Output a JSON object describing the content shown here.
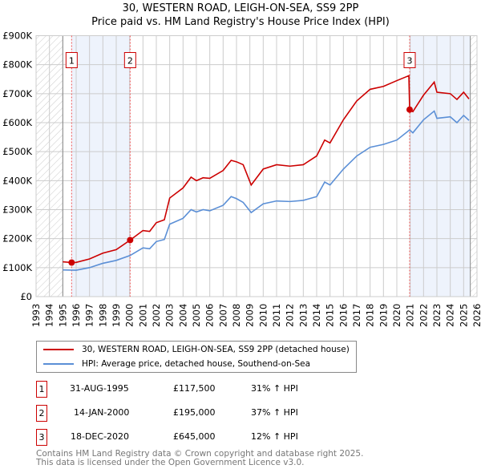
{
  "chart_data": {
    "type": "line",
    "title": "30, WESTERN ROAD, LEIGH-ON-SEA, SS9 2PP",
    "subtitle": "Price paid vs. HM Land Registry's House Price Index (HPI)",
    "xlim": [
      1993,
      2026
    ],
    "ylim": [
      0,
      900000
    ],
    "x_ticks": [
      "1993",
      "1994",
      "1995",
      "1996",
      "1997",
      "1998",
      "1999",
      "2000",
      "2001",
      "2002",
      "2003",
      "2004",
      "2005",
      "2006",
      "2007",
      "2008",
      "2009",
      "2010",
      "2011",
      "2012",
      "2013",
      "2014",
      "2015",
      "2016",
      "2017",
      "2018",
      "2019",
      "2020",
      "2021",
      "2022",
      "2023",
      "2024",
      "2025",
      "2026"
    ],
    "y_ticks": [
      {
        "v": 0,
        "label": "£0"
      },
      {
        "v": 100000,
        "label": "£100K"
      },
      {
        "v": 200000,
        "label": "£200K"
      },
      {
        "v": 300000,
        "label": "£300K"
      },
      {
        "v": 400000,
        "label": "£400K"
      },
      {
        "v": 500000,
        "label": "£500K"
      },
      {
        "v": 600000,
        "label": "£600K"
      },
      {
        "v": 700000,
        "label": "£700K"
      },
      {
        "v": 800000,
        "label": "£800K"
      },
      {
        "v": 900000,
        "label": "£900K"
      }
    ],
    "grid": true,
    "series": [
      {
        "name": "30, WESTERN ROAD, LEIGH-ON-SEA, SS9 2PP (detached house)",
        "color": "#cc0000",
        "x": [
          1995.0,
          1995.66,
          1996,
          1997,
          1998,
          1999,
          2000.04,
          2001,
          2001.5,
          2002,
          2002.6,
          2003,
          2004,
          2004.6,
          2005,
          2005.5,
          2006,
          2007,
          2007.6,
          2008,
          2008.5,
          2009.1,
          2010,
          2011,
          2012,
          2013,
          2014,
          2014.6,
          2015,
          2016,
          2017,
          2018,
          2019,
          2020,
          2020.9,
          2020.96,
          2021.2,
          2022,
          2022.8,
          2023,
          2024,
          2024.5,
          2025,
          2025.4
        ],
        "y": [
          120000,
          117500,
          118000,
          130000,
          150000,
          162000,
          195000,
          228000,
          225000,
          255000,
          265000,
          340000,
          375000,
          412000,
          400000,
          410000,
          408000,
          435000,
          470000,
          465000,
          455000,
          385000,
          440000,
          455000,
          450000,
          455000,
          485000,
          540000,
          530000,
          610000,
          675000,
          715000,
          725000,
          745000,
          762000,
          645000,
          638000,
          695000,
          740000,
          705000,
          700000,
          680000,
          705000,
          682000
        ]
      },
      {
        "name": "HPI: Average price, detached house, Southend-on-Sea",
        "color": "#5b8fd6",
        "x": [
          1995.0,
          1996,
          1997,
          1998,
          1999,
          2000.04,
          2001,
          2001.5,
          2002,
          2002.6,
          2003,
          2004,
          2004.6,
          2005,
          2005.5,
          2006,
          2007,
          2007.6,
          2008,
          2008.5,
          2009.1,
          2010,
          2011,
          2012,
          2013,
          2014,
          2014.6,
          2015,
          2016,
          2017,
          2018,
          2019,
          2020,
          2020.96,
          2021.2,
          2022,
          2022.8,
          2023,
          2024,
          2024.5,
          2025,
          2025.4
        ],
        "y": [
          92000,
          91000,
          100000,
          115000,
          125000,
          142000,
          168000,
          165000,
          190000,
          197000,
          250000,
          270000,
          300000,
          292000,
          300000,
          296000,
          315000,
          345000,
          338000,
          325000,
          290000,
          320000,
          330000,
          328000,
          332000,
          345000,
          395000,
          385000,
          440000,
          485000,
          515000,
          525000,
          540000,
          575000,
          565000,
          610000,
          640000,
          615000,
          620000,
          600000,
          625000,
          608000
        ]
      }
    ],
    "sales": [
      {
        "id": "1",
        "x": 1995.66,
        "y": 117500,
        "date": "31-AUG-1995",
        "price": "£117,500",
        "hpi": "31% ↑ HPI"
      },
      {
        "id": "2",
        "x": 2000.04,
        "y": 195000,
        "date": "14-JAN-2000",
        "price": "£195,000",
        "hpi": "37% ↑ HPI"
      },
      {
        "id": "3",
        "x": 2020.96,
        "y": 645000,
        "date": "18-DEC-2020",
        "price": "£645,000",
        "hpi": "12% ↑ HPI"
      }
    ],
    "shaded_ranges": [
      [
        1995.66,
        2000.04
      ],
      [
        2020.96,
        2025.5
      ]
    ],
    "hatched_ranges": [
      [
        1993,
        1995
      ],
      [
        2025.5,
        2026
      ]
    ],
    "legend_position": "below"
  },
  "footer": {
    "line1": "Contains HM Land Registry data © Crown copyright and database right 2025.",
    "line2": "This data is licensed under the Open Government Licence v3.0."
  }
}
